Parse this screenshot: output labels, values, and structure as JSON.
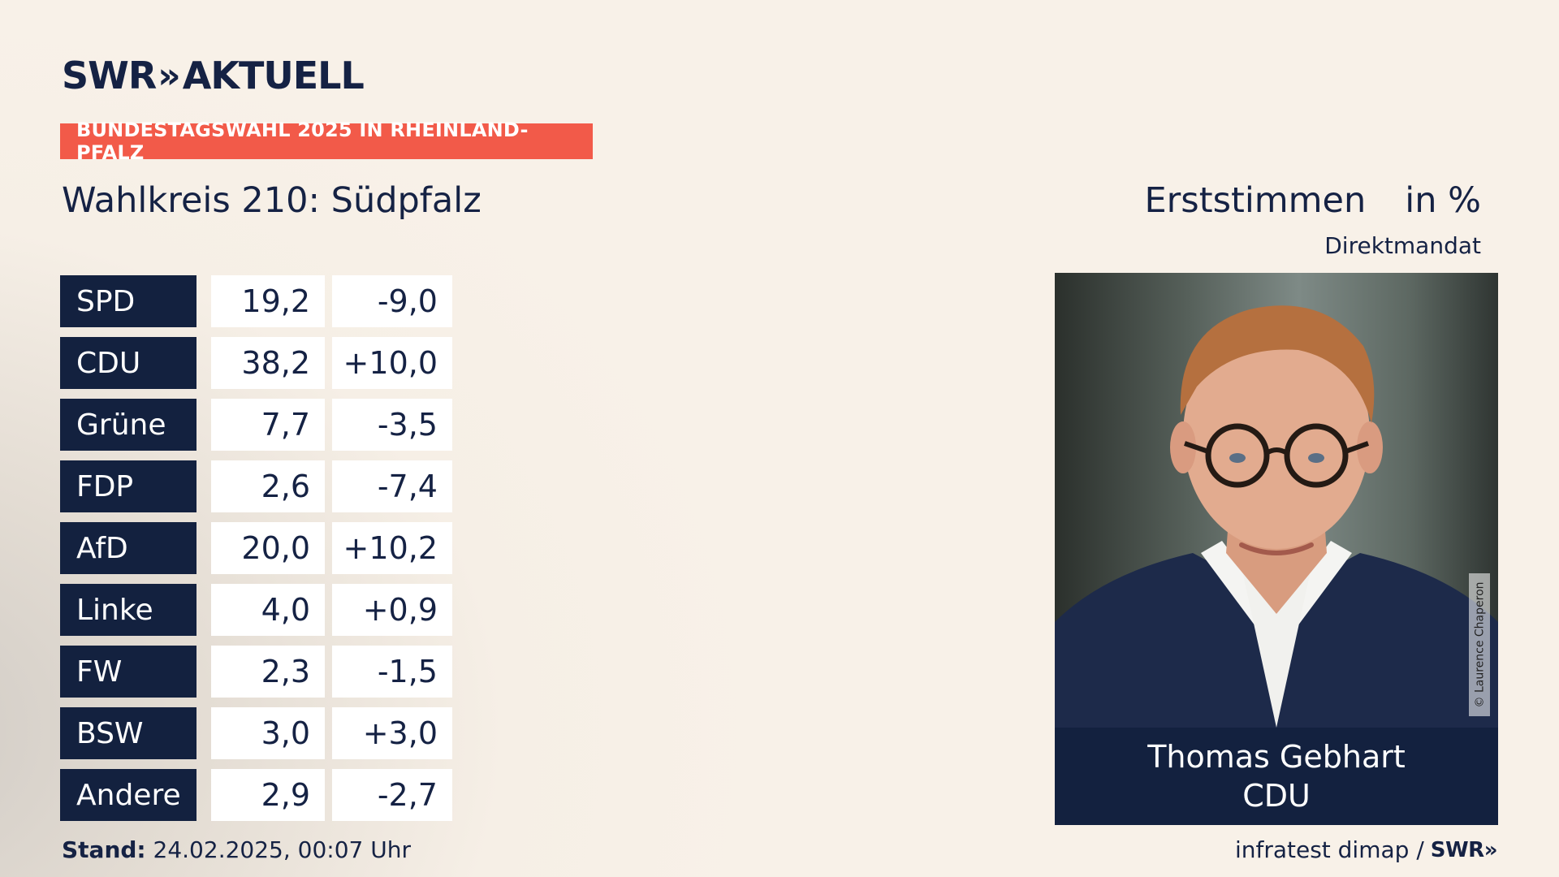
{
  "header": {
    "brand_main": "SWR",
    "brand_chevrons": "»",
    "brand_suffix": "AKTUELL",
    "banner": "BUNDESTAGSWAHL 2025 IN RHEINLAND-PFALZ",
    "district": "Wahlkreis 210: Südpfalz",
    "vote_type": "Erststimmen",
    "unit": "in %",
    "mandate_label": "Direktmandat"
  },
  "results": [
    {
      "party": "SPD",
      "share": "19,2",
      "diff": "-9,0"
    },
    {
      "party": "CDU",
      "share": "38,2",
      "diff": "+10,0"
    },
    {
      "party": "Grüne",
      "share": "7,7",
      "diff": "-3,5"
    },
    {
      "party": "FDP",
      "share": "2,6",
      "diff": "-7,4"
    },
    {
      "party": "AfD",
      "share": "20,0",
      "diff": "+10,2"
    },
    {
      "party": "Linke",
      "share": "4,0",
      "diff": "+0,9"
    },
    {
      "party": "FW",
      "share": "2,3",
      "diff": "-1,5"
    },
    {
      "party": "BSW",
      "share": "3,0",
      "diff": "+3,0"
    },
    {
      "party": "Andere",
      "share": "2,9",
      "diff": "-2,7"
    }
  ],
  "candidate": {
    "name": "Thomas Gebhart",
    "party": "CDU",
    "photo_credit": "© Laurence Chaperon"
  },
  "footer": {
    "status_label": "Stand:",
    "status_value": "24.02.2025, 00:07 Uhr",
    "source": "infratest dimap /",
    "source_brand": "SWR»"
  },
  "colors": {
    "navy": "#13213f",
    "banner_red": "#f25a49",
    "background": "#f8f1e8"
  }
}
